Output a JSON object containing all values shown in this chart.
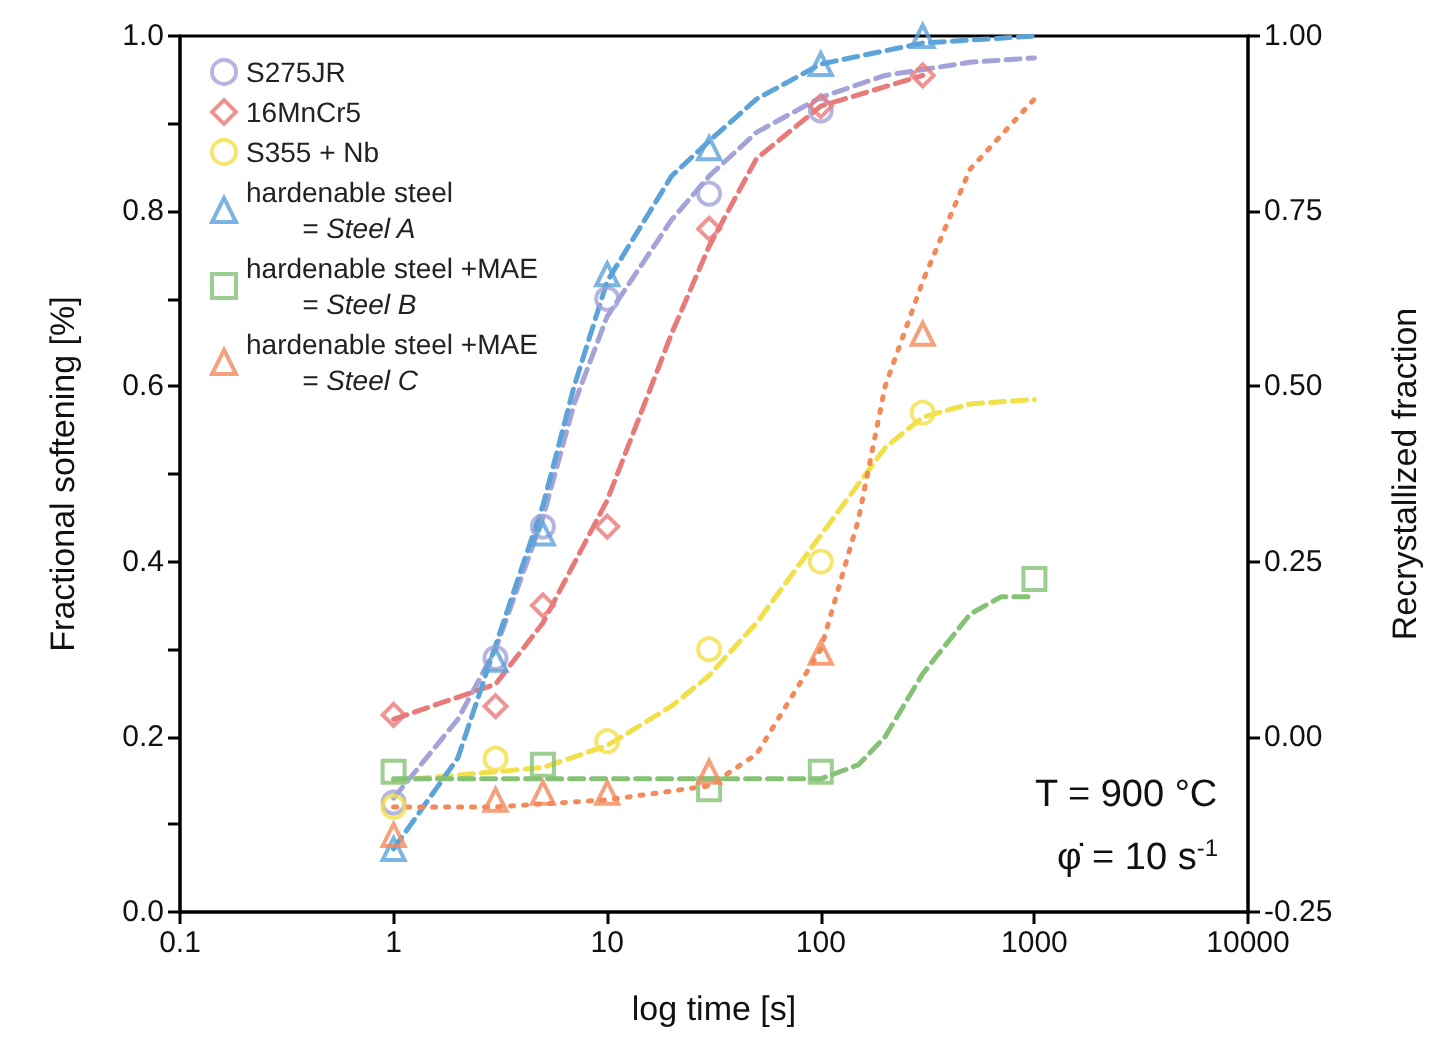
{
  "chart_data": {
    "type": "scatter",
    "xlabel": "log time [s]",
    "ylabel": "Fractional softening [%]",
    "y2label": "Recrystallized fraction",
    "log": "x",
    "grid": false,
    "legend": "top left",
    "xlim": [
      0.1,
      10000
    ],
    "xticks": [
      0.1,
      1,
      10,
      100,
      1000,
      10000
    ],
    "ylim": [
      0,
      1
    ],
    "yticks": [
      {
        "value": 0,
        "label": "0.0"
      },
      {
        "value": 0.1,
        "label": null
      },
      0.2,
      {
        "value": 0.3,
        "label": null
      },
      0.4,
      {
        "value": 0.5,
        "label": null
      },
      0.6,
      {
        "value": 0.7,
        "label": null
      },
      0.8,
      {
        "value": 0.9,
        "label": null
      },
      {
        "value": 1,
        "label": "1.0"
      }
    ],
    "y2lim": [
      -0.25,
      1
    ],
    "y2ticks": [
      -0.25,
      {
        "value": 0,
        "label": "0.00"
      },
      0.25,
      {
        "value": 0.5,
        "label": "0.50"
      },
      0.75,
      {
        "value": 1,
        "label": "1.00"
      }
    ],
    "annotations": [
      "T = 900 °C",
      "φ̇ = 10 s$^{-1}$"
    ],
    "series": [
      {
        "name": "S275JR",
        "color": "#a3a3d9",
        "marker": "circle",
        "x": [
          1,
          3,
          5,
          10,
          30,
          100
        ],
        "values": [
          0.125,
          0.29,
          0.44,
          0.7,
          0.82,
          0.915
        ]
      },
      {
        "name": "16MnCr5",
        "color": "#e87a7a",
        "marker": "diamond",
        "x": [
          1,
          3,
          5,
          10,
          30,
          100,
          300
        ],
        "values": [
          0.225,
          0.235,
          0.35,
          0.44,
          0.78,
          0.92,
          0.955
        ]
      },
      {
        "name": "S355 + Nb",
        "color": "#f2e04a",
        "marker": "circle",
        "x": [
          1,
          3,
          10,
          30,
          100,
          300
        ],
        "values": [
          0.12,
          0.175,
          0.195,
          0.3,
          0.4,
          0.57
        ]
      },
      {
        "name": "hardenable steel\n= Steel A",
        "color": "#5ba3d9",
        "marker": "triangle",
        "axis": "y2",
        "x": [
          1,
          3,
          5,
          10,
          30,
          100,
          300
        ],
        "values": [
          -0.16,
          0.11,
          0.29,
          0.66,
          0.84,
          0.96,
          1.0
        ]
      },
      {
        "name": "hardenable steel +MAE\n= Steel B",
        "color": "#85c275",
        "marker": "square",
        "axis": "y2",
        "x": [
          1,
          5,
          30,
          100,
          1000
        ],
        "values": [
          -0.05,
          -0.04,
          -0.075,
          -0.05,
          0.225
        ]
      },
      {
        "name": "hardenable steel +MAE\n= Steel C",
        "color": "#f28a5a",
        "marker": "triangle",
        "axis": "y2",
        "x": [
          1,
          3,
          5,
          10,
          30,
          100,
          300
        ],
        "values": [
          -0.14,
          -0.09,
          -0.08,
          -0.08,
          -0.05,
          0.12,
          0.575
        ]
      },
      {
        "type": "line",
        "color": "#a3a3d9",
        "line_style": "dashed",
        "x": [
          1,
          2,
          3,
          5,
          7,
          10,
          20,
          30,
          50,
          100,
          200,
          500,
          1000
        ],
        "values": [
          0.13,
          0.22,
          0.3,
          0.45,
          0.58,
          0.68,
          0.79,
          0.84,
          0.89,
          0.93,
          0.955,
          0.97,
          0.975
        ]
      },
      {
        "type": "line",
        "color": "#e87a7a",
        "line_style": "dashed",
        "x": [
          1,
          3,
          5,
          10,
          20,
          30,
          50,
          100,
          300
        ],
        "values": [
          0.22,
          0.26,
          0.33,
          0.47,
          0.66,
          0.76,
          0.86,
          0.92,
          0.955
        ]
      },
      {
        "type": "line",
        "color": "#f2e04a",
        "line_style": "dashed",
        "x": [
          1,
          3,
          5,
          10,
          20,
          30,
          50,
          100,
          200,
          300,
          500,
          1000
        ],
        "values": [
          0.15,
          0.16,
          0.165,
          0.19,
          0.235,
          0.27,
          0.33,
          0.43,
          0.53,
          0.565,
          0.58,
          0.585
        ]
      },
      {
        "type": "line",
        "color": "#5ba3d9",
        "line_style": "dashed",
        "axis": "y2",
        "x": [
          1,
          2,
          3,
          5,
          7,
          10,
          20,
          30,
          50,
          100,
          300,
          1000
        ],
        "values": [
          -0.16,
          -0.03,
          0.13,
          0.33,
          0.5,
          0.65,
          0.8,
          0.85,
          0.91,
          0.96,
          0.99,
          1.0
        ]
      },
      {
        "type": "line",
        "color": "#85c275",
        "line_style": "dashed",
        "axis": "y2",
        "x": [
          1,
          100,
          150,
          200,
          300,
          500,
          700,
          1000
        ],
        "values": [
          -0.06,
          -0.06,
          -0.04,
          0,
          0.09,
          0.175,
          0.2,
          0.2
        ]
      },
      {
        "type": "line",
        "color": "#f28a5a",
        "line_style": "dotted",
        "axis": "y2",
        "x": [
          1,
          3,
          10,
          30,
          50,
          100,
          150,
          200,
          300,
          500,
          1000
        ],
        "values": [
          -0.1,
          -0.1,
          -0.09,
          -0.07,
          -0.025,
          0.125,
          0.31,
          0.5,
          0.65,
          0.81,
          0.91
        ]
      }
    ]
  }
}
